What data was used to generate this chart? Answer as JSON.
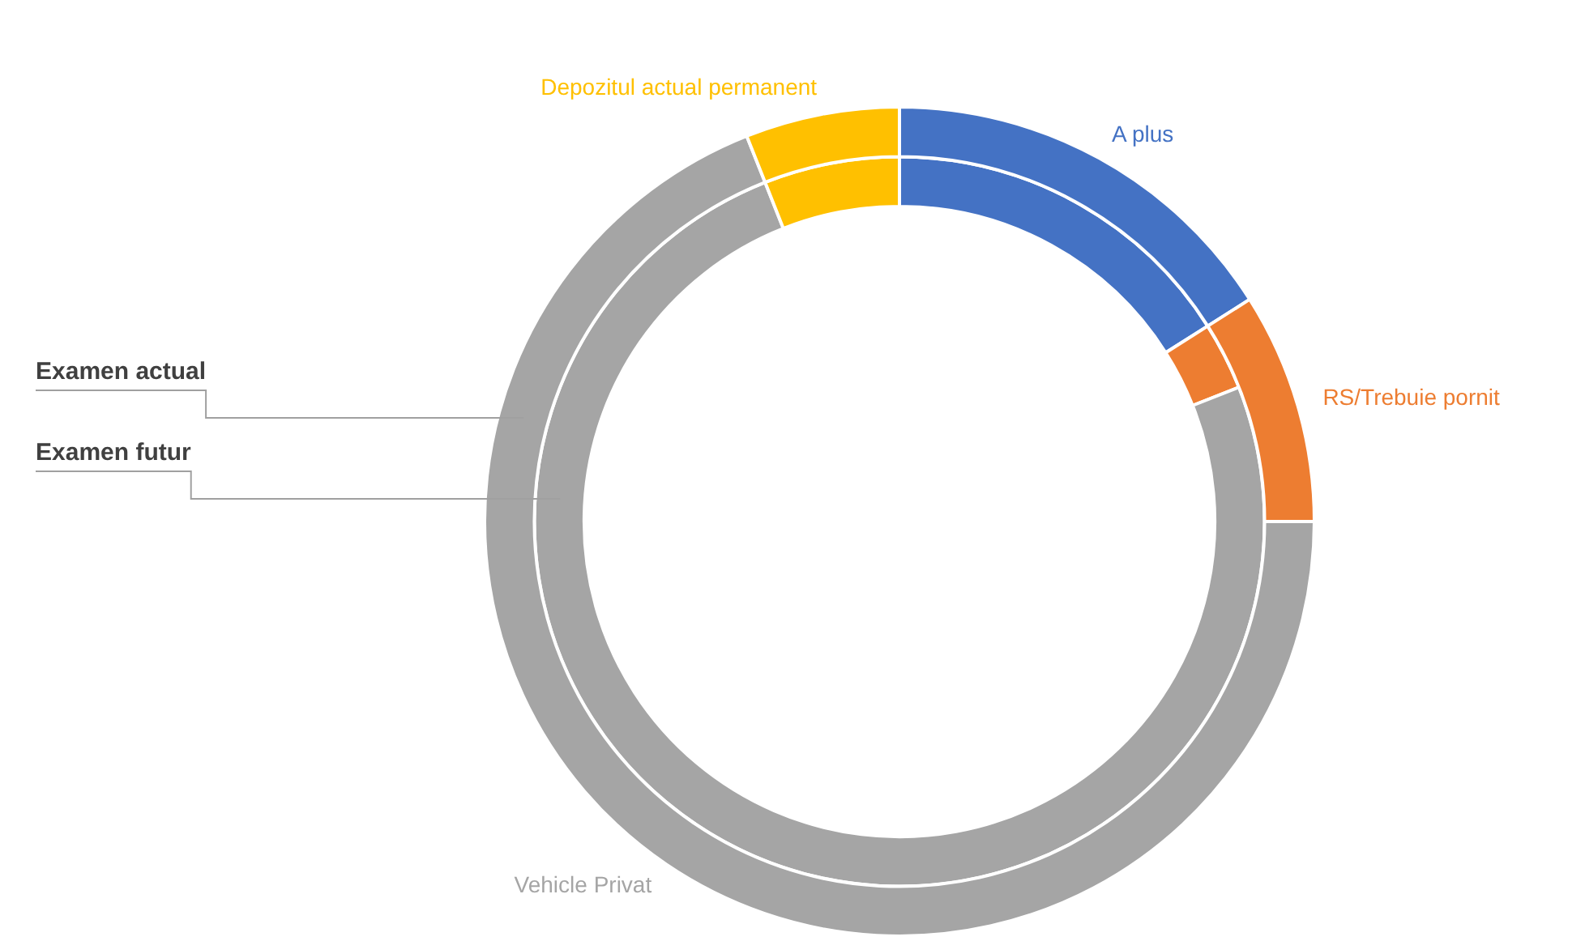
{
  "chart_data": {
    "type": "donut",
    "categories": [
      "A plus",
      "RS/Trebuie pornit",
      "Vehicle Privat",
      "Depozitul actual permanent"
    ],
    "colors": [
      "#4472c4",
      "#ed7d31",
      "#a5a5a5",
      "#ffc000"
    ],
    "series": [
      {
        "name": "Examen actual",
        "values": [
          16,
          9,
          69,
          6
        ]
      },
      {
        "name": "Examen futur",
        "values": [
          16,
          3,
          75,
          6
        ]
      }
    ],
    "legend": false
  }
}
